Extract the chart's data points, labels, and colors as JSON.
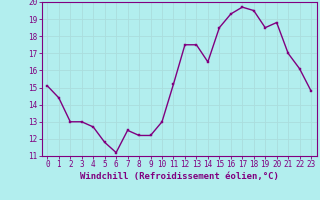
{
  "x": [
    0,
    1,
    2,
    3,
    4,
    5,
    6,
    7,
    8,
    9,
    10,
    11,
    12,
    13,
    14,
    15,
    16,
    17,
    18,
    19,
    20,
    21,
    22,
    23
  ],
  "y": [
    15.1,
    14.4,
    13.0,
    13.0,
    12.7,
    11.8,
    11.2,
    12.5,
    12.2,
    12.2,
    13.0,
    15.2,
    17.5,
    17.5,
    16.5,
    18.5,
    19.3,
    19.7,
    19.5,
    18.5,
    18.8,
    17.0,
    16.1,
    14.8
  ],
  "line_color": "#800080",
  "marker": "s",
  "marker_size": 2,
  "line_width": 1.0,
  "bg_color": "#b2eeee",
  "grid_color": "#aadddd",
  "xlabel": "Windchill (Refroidissement éolien,°C)",
  "xlabel_color": "#800080",
  "ylim": [
    11,
    20
  ],
  "xlim": [
    -0.5,
    23.5
  ],
  "yticks": [
    11,
    12,
    13,
    14,
    15,
    16,
    17,
    18,
    19,
    20
  ],
  "xticks": [
    0,
    1,
    2,
    3,
    4,
    5,
    6,
    7,
    8,
    9,
    10,
    11,
    12,
    13,
    14,
    15,
    16,
    17,
    18,
    19,
    20,
    21,
    22,
    23
  ],
  "tick_label_color": "#800080",
  "tick_label_size": 5.5,
  "xlabel_size": 6.5,
  "axis_color": "#800080",
  "spine_color": "#800080"
}
